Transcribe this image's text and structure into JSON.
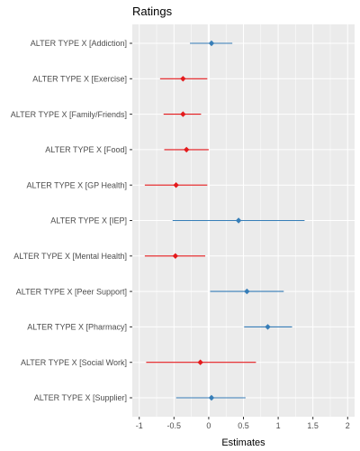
{
  "chart_data": {
    "type": "forest-plot",
    "title": "Ratings",
    "xlabel": "Estimates",
    "ylabel": "",
    "xlim": [
      -1.1,
      2.1
    ],
    "xticks": [
      -1,
      -0.5,
      0,
      0.5,
      1,
      1.5,
      2
    ],
    "xtick_labels": [
      "-1",
      "-0.5",
      "0",
      "0.5",
      "1",
      "1.5",
      "2"
    ],
    "reference_line": 0,
    "grid": true,
    "colors": {
      "positive": "#377eb8",
      "negative": "#e41a1c",
      "panel": "#ebebeb",
      "gridline": "#ffffff"
    },
    "rows": [
      {
        "label": "ALTER TYPE X [Addiction]",
        "estimate": 0.04,
        "low": -0.27,
        "high": 0.34,
        "direction": "positive"
      },
      {
        "label": "ALTER TYPE X [Exercise]",
        "estimate": -0.37,
        "low": -0.7,
        "high": -0.02,
        "direction": "negative"
      },
      {
        "label": "ALTER TYPE X [Family/Friends]",
        "estimate": -0.37,
        "low": -0.65,
        "high": -0.11,
        "direction": "negative"
      },
      {
        "label": "ALTER TYPE X [Food]",
        "estimate": -0.32,
        "low": -0.64,
        "high": 0.0,
        "direction": "negative"
      },
      {
        "label": "ALTER TYPE X [GP Health]",
        "estimate": -0.47,
        "low": -0.92,
        "high": -0.02,
        "direction": "negative"
      },
      {
        "label": "ALTER TYPE X [IEP]",
        "estimate": 0.43,
        "low": -0.52,
        "high": 1.38,
        "direction": "positive"
      },
      {
        "label": "ALTER TYPE X [Mental Health]",
        "estimate": -0.48,
        "low": -0.92,
        "high": -0.05,
        "direction": "negative"
      },
      {
        "label": "ALTER TYPE X [Peer Support]",
        "estimate": 0.55,
        "low": 0.02,
        "high": 1.08,
        "direction": "positive"
      },
      {
        "label": "ALTER TYPE X [Pharmacy]",
        "estimate": 0.85,
        "low": 0.51,
        "high": 1.2,
        "direction": "positive"
      },
      {
        "label": "ALTER TYPE X [Social Work]",
        "estimate": -0.12,
        "low": -0.9,
        "high": 0.68,
        "direction": "negative"
      },
      {
        "label": "ALTER TYPE X [Supplier]",
        "estimate": 0.04,
        "low": -0.47,
        "high": 0.53,
        "direction": "positive"
      }
    ]
  }
}
